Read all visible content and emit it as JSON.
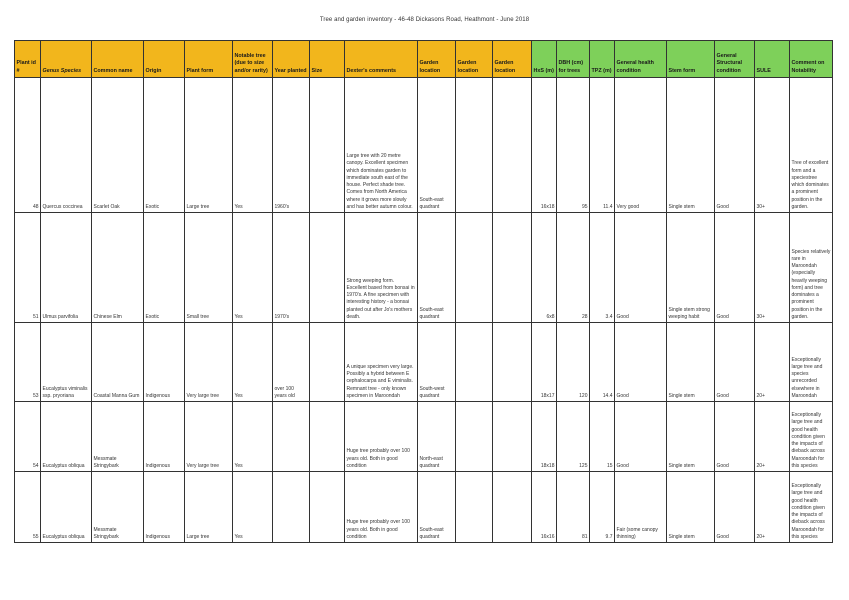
{
  "document": {
    "title": "Tree and garden inventory - 46-48 Dickasons Road, Heathmont - June 2018"
  },
  "columns": [
    "Plant id #",
    "Genus Species",
    "Common name",
    "Origin",
    "Plant form",
    "Notable tree (due to size and/or rarity)",
    "Year planted",
    "Size",
    "Dexter's comments",
    "Garden location",
    "Garden location",
    "Garden location",
    "HxS (m)",
    "DBH (cm) for trees",
    "TPZ (m)",
    "General health condition",
    "Stem form",
    "General Structural condition",
    "SULE",
    "Comment on Notability"
  ],
  "rows": [
    {
      "id": "48",
      "species": "Quercus coccinea",
      "common": "Scarlet Oak",
      "origin": "Exotic",
      "form": "Large tree",
      "notable": "Yes",
      "year": "1960's",
      "size": "",
      "dexter": "Large tree with 20 metre canopy. Excellent specimen which dominates garden to immediate south east of the house. Perfect shade tree. Comes from North America where it grows more slowly and has better autumn colour.",
      "loc1": "South-east quadrant",
      "loc2": "",
      "loc3": "",
      "hxs": "16x18",
      "dbh": "95",
      "tpz": "11.4",
      "health": "Very good",
      "stem": "Single stem",
      "structural": "Good",
      "sule": "30+",
      "notability": "Tree of excellent form and a speciestree which dominates a prominent position in the garden."
    },
    {
      "id": "51",
      "species": "Ulmus parvifolia",
      "common": "Chinese Elm",
      "origin": "Exotic",
      "form": "Small tree",
      "notable": "Yes",
      "year": "1970's",
      "size": "",
      "dexter": "Strong weeping form. Excellent based from bonsai in 1970's. A fine specimen with interesting history - a bonsai planted out after Jo's mothers death.",
      "loc1": "South-east quadrant",
      "loc2": "",
      "loc3": "",
      "hxs": "6x8",
      "dbh": "28",
      "tpz": "3.4",
      "health": "Good",
      "stem": "Single stem strong weeping habit",
      "structural": "Good",
      "sule": "30+",
      "notability": "Species relatively rare in Maroondah (especially heavily weeping form) and tree dominates a prominent position in the garden."
    },
    {
      "id": "53",
      "species": "Eucalyptus viminalis ssp. pryoriana",
      "common": "Coastal Manna Gum",
      "origin": "Indigenous",
      "form": "Very large tree",
      "notable": "Yes",
      "year": "over 100 years old",
      "size": "",
      "dexter": "A unique specimen very large. Possibly a hybrid between E cephalocarpa and E viminalis. Remnant tree - only known specimen in Maroondah",
      "loc1": "South-west quadrant",
      "loc2": "",
      "loc3": "",
      "hxs": "18x17",
      "dbh": "120",
      "tpz": "14.4",
      "health": "Good",
      "stem": "Single stem",
      "structural": "Good",
      "sule": "20+",
      "notability": "Exceptionally large tree and species unrecorded elsewhere in Maroondah"
    },
    {
      "id": "54",
      "species": "Eucalyptus obliqua",
      "common": "Messmate Stringybark",
      "origin": "Indigenous",
      "form": "Very large tree",
      "notable": "Yes",
      "year": "",
      "size": "",
      "dexter": "Huge tree probably over 100 years old. Both in good condition",
      "loc1": "North-east quadrant",
      "loc2": "",
      "loc3": "",
      "hxs": "18x18",
      "dbh": "125",
      "tpz": "15",
      "health": "Good",
      "stem": "Single stem",
      "structural": "Good",
      "sule": "20+",
      "notability": "Exceptionally large tree and good health condition given the impacts of dieback across Maroondah for this species"
    },
    {
      "id": "55",
      "species": "Eucalyptus obliqua",
      "common": "Messmate Stringybark",
      "origin": "Indigenous",
      "form": "Large tree",
      "notable": "Yes",
      "year": "",
      "size": "",
      "dexter": "Huge tree probably over 100 years old. Both in good condition",
      "loc1": "South-east quadrant",
      "loc2": "",
      "loc3": "",
      "hxs": "16x16",
      "dbh": "81",
      "tpz": "9.7",
      "health": "Fair (some canopy thinning)",
      "stem": "Single stem",
      "structural": "Good",
      "sule": "20+",
      "notability": "Exceptionally large tree and good health condition given the impacts of dieback across Maroondah for this species"
    }
  ],
  "colors": {
    "header_orange": "#f2b61c",
    "header_green": "#7ed05a",
    "grid_line": "#333333"
  }
}
